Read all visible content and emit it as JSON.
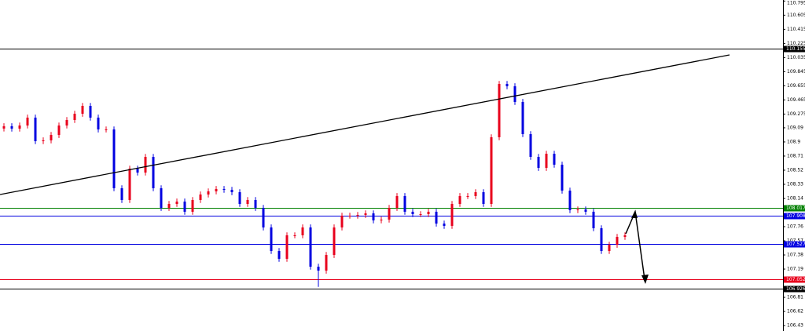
{
  "chart_data": {
    "type": "candlestick",
    "ylim": [
      106.357,
      110.809
    ],
    "yticks": [
      110.795,
      110.605,
      110.415,
      110.225,
      110.035,
      109.845,
      109.655,
      109.465,
      109.275,
      109.09,
      108.9,
      108.71,
      108.52,
      108.33,
      108.14,
      107.76,
      107.57,
      107.38,
      107.19,
      106.81,
      106.62,
      106.43
    ],
    "up_color": "#e8001c",
    "down_color": "#0000e0",
    "levels": [
      {
        "value": 110.155,
        "color": "#000000"
      },
      {
        "value": 108.017,
        "color": "#008000"
      },
      {
        "value": 107.908,
        "color": "#0000e0"
      },
      {
        "value": 107.527,
        "color": "#0000e0"
      },
      {
        "value": 107.052,
        "color": "#e8001c"
      },
      {
        "value": 106.926,
        "color": "#000000"
      }
    ],
    "open": [
      109.08,
      109.111,
      109.079,
      109.121,
      109.227,
      108.91,
      108.921,
      108.994,
      109.121,
      109.195,
      109.279,
      109.385,
      109.227,
      109.068,
      109.068,
      108.277,
      108.119,
      108.541,
      108.488,
      108.699,
      108.277,
      108.013,
      108.066,
      108.098,
      107.961,
      108.119,
      108.193,
      108.235,
      108.267,
      108.256,
      108.224,
      108.066,
      108.119,
      108.013,
      107.75,
      107.433,
      107.328,
      107.644,
      107.644,
      107.75,
      107.222,
      107.169,
      107.38,
      107.75,
      107.908,
      107.908,
      107.918,
      107.939,
      107.845,
      107.855,
      108.013,
      108.172,
      107.961,
      107.929,
      107.929,
      107.961,
      107.802,
      107.771,
      108.066,
      108.172,
      108.172,
      108.224,
      108.066,
      108.963,
      109.68,
      109.649,
      109.438,
      109.005,
      108.699,
      108.551,
      108.741,
      108.594,
      108.245,
      107.982,
      107.992,
      107.961,
      107.739,
      107.433,
      107.517,
      107.623
    ],
    "high": [
      109.151,
      109.151,
      109.161,
      109.267,
      109.267,
      108.961,
      109.034,
      109.161,
      109.235,
      109.319,
      109.425,
      109.425,
      109.267,
      109.108,
      109.108,
      108.317,
      108.581,
      108.581,
      108.739,
      108.739,
      108.317,
      108.106,
      108.138,
      108.138,
      108.159,
      108.233,
      108.275,
      108.307,
      108.307,
      108.296,
      108.264,
      108.159,
      108.159,
      108.053,
      107.79,
      107.473,
      107.684,
      107.684,
      107.79,
      107.79,
      107.262,
      107.42,
      107.79,
      107.948,
      107.948,
      107.958,
      107.979,
      107.979,
      107.895,
      108.053,
      108.212,
      108.212,
      108.001,
      107.969,
      108.001,
      108.001,
      107.842,
      108.106,
      108.212,
      108.212,
      108.264,
      108.264,
      109.003,
      109.72,
      109.72,
      109.689,
      109.478,
      109.045,
      108.739,
      108.781,
      108.781,
      108.634,
      108.285,
      108.032,
      108.032,
      108.001,
      107.779,
      107.557,
      107.663,
      107.684
    ],
    "low": [
      109.04,
      109.039,
      109.039,
      109.081,
      108.87,
      108.87,
      108.881,
      108.954,
      109.081,
      109.155,
      109.239,
      109.187,
      109.028,
      109.028,
      108.237,
      108.079,
      108.079,
      108.448,
      108.448,
      108.237,
      107.973,
      107.973,
      108.026,
      107.921,
      107.921,
      108.079,
      108.153,
      108.195,
      108.216,
      108.184,
      108.026,
      108.026,
      107.973,
      107.71,
      107.393,
      107.288,
      107.288,
      107.604,
      107.604,
      107.182,
      106.95,
      107.129,
      107.34,
      107.71,
      107.868,
      107.868,
      107.878,
      107.805,
      107.805,
      107.815,
      107.973,
      107.921,
      107.889,
      107.889,
      107.889,
      107.762,
      107.731,
      107.731,
      108.026,
      108.132,
      108.132,
      108.026,
      108.026,
      108.923,
      109.609,
      109.398,
      108.965,
      108.659,
      108.511,
      108.511,
      108.554,
      108.205,
      107.942,
      107.942,
      107.921,
      107.699,
      107.393,
      107.393,
      107.477,
      107.583
    ],
    "close": [
      109.111,
      109.079,
      109.121,
      109.227,
      108.91,
      108.921,
      108.994,
      109.121,
      109.195,
      109.279,
      109.385,
      109.227,
      109.068,
      109.068,
      108.277,
      108.119,
      108.541,
      108.488,
      108.699,
      108.277,
      108.013,
      108.066,
      108.098,
      107.961,
      108.119,
      108.193,
      108.235,
      108.267,
      108.256,
      108.224,
      108.066,
      108.119,
      108.013,
      107.75,
      107.433,
      107.328,
      107.644,
      107.644,
      107.75,
      107.222,
      107.169,
      107.38,
      107.75,
      107.908,
      107.908,
      107.918,
      107.939,
      107.845,
      107.855,
      108.013,
      108.172,
      107.961,
      107.929,
      107.929,
      107.961,
      107.802,
      107.771,
      108.066,
      108.172,
      108.172,
      108.224,
      108.066,
      108.963,
      109.68,
      109.649,
      109.438,
      109.005,
      108.699,
      108.551,
      108.741,
      108.594,
      108.245,
      107.982,
      107.992,
      107.961,
      107.739,
      107.433,
      107.517,
      107.623,
      107.644
    ]
  }
}
